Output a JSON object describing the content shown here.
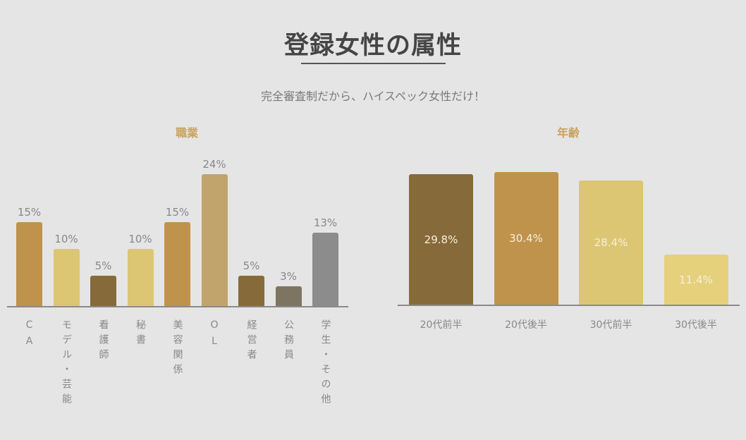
{
  "header": {
    "title": "登録女性の属性",
    "subtitle": "完全審査制だから、ハイスペック女性だけ！"
  },
  "chart_data": [
    {
      "type": "bar",
      "title": "職業",
      "categories": [
        "CA",
        "モデル・芸能",
        "看護師",
        "秘書",
        "美容関係",
        "OL",
        "経営者",
        "公務員",
        "学生・その他"
      ],
      "values": [
        15,
        10,
        5,
        10,
        15,
        24,
        5,
        3,
        13
      ],
      "labels": [
        "15%",
        "10%",
        "5%",
        "10%",
        "15%",
        "24%",
        "5%",
        "3%",
        "13%"
      ],
      "colors": [
        "#c0934c",
        "#dcc674",
        "#876a3a",
        "#dcc674",
        "#c0934c",
        "#c0a46c",
        "#876a3a",
        "#7d7462",
        "#8c8c8c"
      ],
      "value_label_position": "above",
      "grid": false
    },
    {
      "type": "bar",
      "title": "年齢",
      "categories": [
        "20代前半",
        "20代後半",
        "30代前半",
        "30代後半"
      ],
      "values": [
        29.8,
        30.4,
        28.4,
        11.4
      ],
      "labels": [
        "29.8%",
        "30.4%",
        "28.4%",
        "11.4%"
      ],
      "colors": [
        "#876a3a",
        "#c0934c",
        "#dcc674",
        "#e5d17c"
      ],
      "value_label_position": "inside",
      "grid": false
    }
  ]
}
